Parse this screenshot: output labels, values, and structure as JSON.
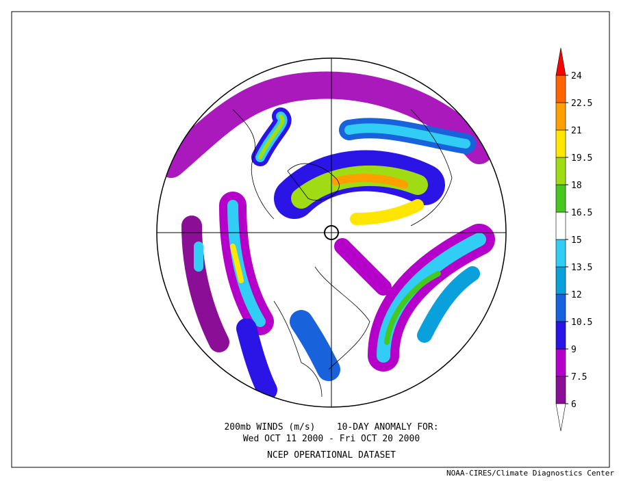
{
  "title_line1": "200mb WINDS (m/s)    10-DAY ANOMALY FOR:",
  "title_line2": "Wed OCT 11 2000 - Fri OCT 20 2000",
  "dataset": "NCEP OPERATIONAL DATASET",
  "credit": "NOAA-CIRES/Climate Diagnostics Center",
  "colorbar": {
    "levels": [
      6,
      7.5,
      9,
      10.5,
      12,
      13.5,
      15,
      16.5,
      18,
      19.5,
      21,
      22.5,
      24
    ],
    "colors": [
      "#8a0f96",
      "#b400c8",
      "#2a14e6",
      "#1862dc",
      "#0aa0dc",
      "#32cdf5",
      "#ffffff",
      "#46c81e",
      "#a0dc14",
      "#ffe600",
      "#ffa000",
      "#ff6400"
    ],
    "below_color": "#ffffff",
    "above_color": "#ff0000"
  }
}
